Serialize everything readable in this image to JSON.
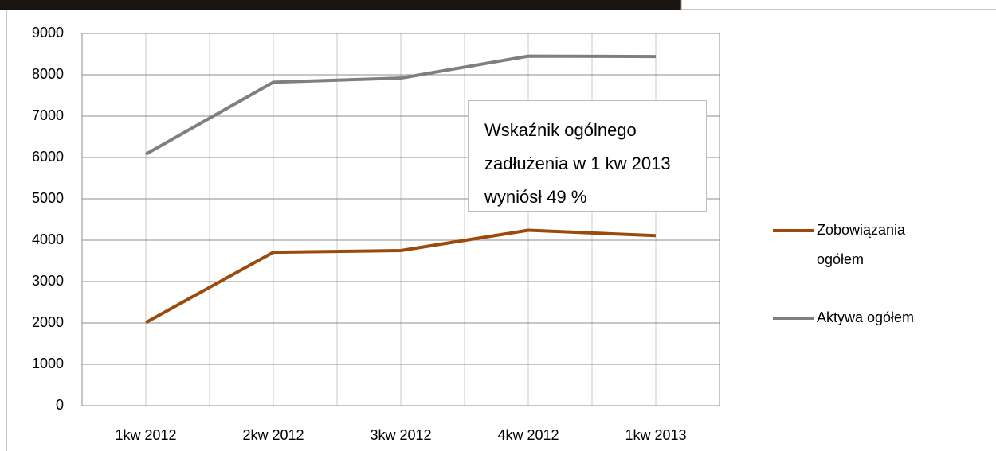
{
  "chart_data": {
    "type": "line",
    "categories": [
      "1kw 2012",
      "2kw 2012",
      "3kw 2012",
      "4kw 2012",
      "1kw 2013"
    ],
    "series": [
      {
        "name": "Zobowiązania ogółem",
        "color": "#9c4a0c",
        "values": [
          2010,
          3710,
          3750,
          4240,
          4110
        ]
      },
      {
        "name": "Aktywa ogółem",
        "color": "#7f7f7f",
        "values": [
          6080,
          7820,
          7920,
          8450,
          8440
        ]
      }
    ],
    "ylim": [
      0,
      9000
    ],
    "yticks": [
      0,
      1000,
      2000,
      3000,
      4000,
      5000,
      6000,
      7000,
      8000,
      9000
    ],
    "grid": true,
    "legend": "right",
    "annotation": "Wskaźnik ogólnego zadłużenia w 1 kw 2013 wyniósł 49 %"
  }
}
